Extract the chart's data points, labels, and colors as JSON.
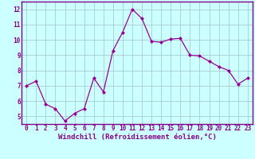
{
  "x": [
    0,
    1,
    2,
    3,
    4,
    5,
    6,
    7,
    8,
    9,
    10,
    11,
    12,
    13,
    14,
    15,
    16,
    17,
    18,
    19,
    20,
    21,
    22,
    23
  ],
  "y": [
    7.0,
    7.3,
    5.8,
    5.5,
    4.7,
    5.2,
    5.5,
    7.5,
    6.6,
    9.3,
    10.5,
    12.0,
    11.4,
    9.9,
    9.85,
    10.05,
    10.1,
    9.0,
    8.95,
    8.6,
    8.25,
    8.0,
    7.1,
    7.5
  ],
  "line_color": "#990099",
  "marker": "D",
  "marker_size": 2.0,
  "bg_color": "#ccffff",
  "grid_color": "#aacccc",
  "xlabel": "Windchill (Refroidissement éolien,°C)",
  "xlim": [
    -0.5,
    23.5
  ],
  "ylim": [
    4.5,
    12.5
  ],
  "yticks": [
    5,
    6,
    7,
    8,
    9,
    10,
    11,
    12
  ],
  "xticks": [
    0,
    1,
    2,
    3,
    4,
    5,
    6,
    7,
    8,
    9,
    10,
    11,
    12,
    13,
    14,
    15,
    16,
    17,
    18,
    19,
    20,
    21,
    22,
    23
  ],
  "label_color": "#880088",
  "spine_color": "#880088",
  "tick_fontsize": 5.5,
  "xlabel_fontsize": 6.5
}
